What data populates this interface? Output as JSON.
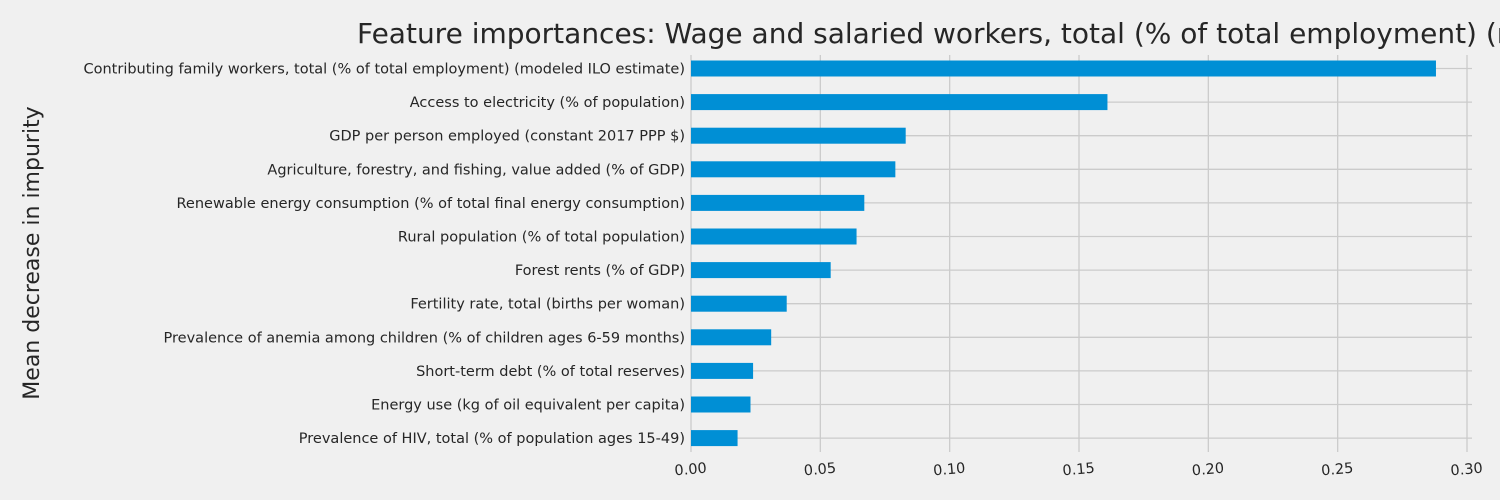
{
  "chart_data": {
    "type": "bar",
    "orientation": "horizontal",
    "title": "Feature importances: Wage and salaried workers, total (% of total employment) (modeled ILO estimate)",
    "xlabel": "",
    "ylabel": "Mean decrease in impurity",
    "xlim": [
      0.0,
      0.3
    ],
    "xticks": [
      "0.00",
      "0.05",
      "0.10",
      "0.15",
      "0.20",
      "0.25",
      "0.30"
    ],
    "xtick_values": [
      0.0,
      0.05,
      0.1,
      0.15,
      0.2,
      0.25,
      0.3
    ],
    "grid": true,
    "bar_color": "#008fd5",
    "background_color": "#f0f0f0",
    "grid_color": "#cbcbcb",
    "categories": [
      "Contributing family workers, total (% of total employment) (modeled ILO estimate)",
      "Access to electricity (% of population)",
      "GDP per person employed (constant 2017 PPP $)",
      "Agriculture, forestry, and fishing, value added (% of GDP)",
      "Renewable energy consumption (% of total final energy consumption)",
      "Rural population (% of total population)",
      "Forest rents (% of GDP)",
      "Fertility rate, total (births per woman)",
      "Prevalence of anemia among children (% of children ages 6-59 months)",
      "Short-term debt (% of total reserves)",
      "Energy use (kg of oil equivalent per capita)",
      "Prevalence of HIV, total (% of population ages 15-49)"
    ],
    "values": [
      0.288,
      0.161,
      0.083,
      0.079,
      0.067,
      0.064,
      0.054,
      0.037,
      0.031,
      0.024,
      0.023,
      0.018
    ]
  }
}
